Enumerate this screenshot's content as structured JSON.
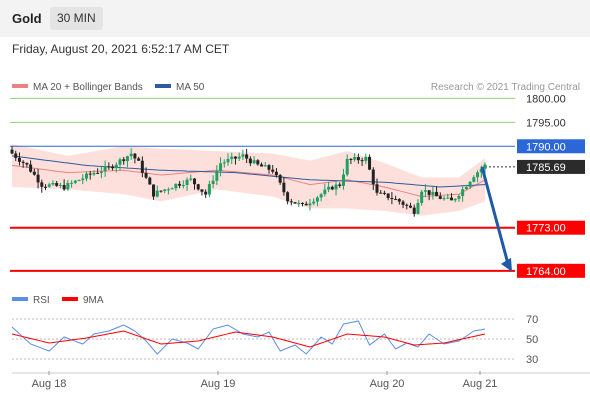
{
  "header": {
    "instrument": "Gold",
    "timeframe": "30 MIN",
    "datetime": "Friday, August 20, 2021 6:52:17 AM CET"
  },
  "colors": {
    "bull": "#1f9f60",
    "bear": "#222222",
    "band_fill": "#fde0dc",
    "ma20": "#f08080",
    "ma50": "#2e5aa0",
    "resistance": "#8fd16a",
    "pivot": "#2b67d6",
    "support": "#ff0000",
    "arrow": "#1f5aa6",
    "rsi": "#5b8ee6",
    "ma9": "#ff0000"
  },
  "chart_data": [
    {
      "type": "candlestick",
      "legend": [
        "MA 20 + Bollinger Bands",
        "MA 50"
      ],
      "credit": "Research © 2021 Trading Central",
      "x_labels": [
        "Aug 18",
        "Aug 19",
        "Aug 20",
        "Aug 21"
      ],
      "ylim": [
        1762.5,
        1803
      ],
      "levels": [
        {
          "label": "1800.00",
          "value": 1800.0,
          "kind": "resistance"
        },
        {
          "label": "1795.00",
          "value": 1795.0,
          "kind": "resistance"
        },
        {
          "label": "1790.00",
          "value": 1790.0,
          "kind": "pivot"
        },
        {
          "label": "1785.69",
          "value": 1785.69,
          "kind": "last"
        },
        {
          "label": "1773.00",
          "value": 1773.0,
          "kind": "support"
        },
        {
          "label": "1764.00",
          "value": 1764.0,
          "kind": "support"
        }
      ],
      "close_anchors": [
        [
          0,
          1788.5
        ],
        [
          4,
          1786
        ],
        [
          8,
          1782
        ],
        [
          14,
          1781.5
        ],
        [
          22,
          1784.5
        ],
        [
          26,
          1785.5
        ],
        [
          29,
          1787
        ],
        [
          32,
          1788.5
        ],
        [
          34,
          1786.5
        ],
        [
          38,
          1780
        ],
        [
          44,
          1782
        ],
        [
          48,
          1783
        ],
        [
          52,
          1780
        ],
        [
          56,
          1786.5
        ],
        [
          62,
          1788
        ],
        [
          66,
          1786
        ],
        [
          70,
          1785
        ],
        [
          74,
          1779
        ],
        [
          78,
          1777.5
        ],
        [
          82,
          1779.5
        ],
        [
          86,
          1781.5
        ],
        [
          88,
          1782
        ],
        [
          90,
          1787
        ],
        [
          95,
          1787.5
        ],
        [
          98,
          1780
        ],
        [
          101,
          1779.5
        ],
        [
          104,
          1778.5
        ],
        [
          108,
          1776.5
        ],
        [
          110,
          1781
        ],
        [
          114,
          1779.5
        ],
        [
          118,
          1778.5
        ],
        [
          121,
          1781
        ],
        [
          124,
          1784
        ],
        [
          127,
          1786
        ]
      ],
      "ma20_anchors": [
        [
          0,
          1786
        ],
        [
          15,
          1784.5
        ],
        [
          30,
          1785
        ],
        [
          40,
          1784
        ],
        [
          55,
          1785
        ],
        [
          70,
          1784
        ],
        [
          80,
          1782
        ],
        [
          90,
          1783
        ],
        [
          100,
          1781.5
        ],
        [
          110,
          1779.5
        ],
        [
          120,
          1780
        ],
        [
          127,
          1783
        ]
      ],
      "band_width_anchors": [
        [
          0,
          4.5
        ],
        [
          15,
          3.5
        ],
        [
          30,
          5
        ],
        [
          40,
          5.5
        ],
        [
          55,
          4
        ],
        [
          70,
          4.5
        ],
        [
          80,
          5
        ],
        [
          90,
          6
        ],
        [
          100,
          5
        ],
        [
          110,
          4
        ],
        [
          120,
          3.5
        ],
        [
          127,
          4.5
        ]
      ],
      "ma50_anchors": [
        [
          0,
          1788
        ],
        [
          20,
          1786
        ],
        [
          40,
          1785
        ],
        [
          60,
          1784.5
        ],
        [
          80,
          1783
        ],
        [
          100,
          1782.5
        ],
        [
          115,
          1781.5
        ],
        [
          127,
          1782
        ]
      ]
    },
    {
      "type": "line",
      "series": [
        {
          "name": "RSI"
        },
        {
          "name": "9MA"
        }
      ],
      "ylim": [
        25,
        75
      ],
      "ticks": [
        70,
        50,
        30
      ],
      "rsi_anchors": [
        [
          0,
          62
        ],
        [
          5,
          45
        ],
        [
          10,
          38
        ],
        [
          14,
          52
        ],
        [
          19,
          45
        ],
        [
          22,
          55
        ],
        [
          26,
          58
        ],
        [
          30,
          64
        ],
        [
          33,
          58
        ],
        [
          36,
          48
        ],
        [
          39,
          35
        ],
        [
          43,
          50
        ],
        [
          47,
          46
        ],
        [
          50,
          40
        ],
        [
          54,
          60
        ],
        [
          58,
          64
        ],
        [
          62,
          55
        ],
        [
          66,
          52
        ],
        [
          69,
          57
        ],
        [
          72,
          38
        ],
        [
          76,
          44
        ],
        [
          79,
          35
        ],
        [
          83,
          52
        ],
        [
          86,
          45
        ],
        [
          89,
          65
        ],
        [
          93,
          68
        ],
        [
          96,
          44
        ],
        [
          100,
          55
        ],
        [
          103,
          40
        ],
        [
          106,
          46
        ],
        [
          109,
          42
        ],
        [
          112,
          55
        ],
        [
          116,
          45
        ],
        [
          120,
          48
        ],
        [
          124,
          58
        ],
        [
          127,
          60
        ]
      ],
      "ma9_anchors": [
        [
          0,
          55
        ],
        [
          10,
          46
        ],
        [
          20,
          51
        ],
        [
          30,
          58
        ],
        [
          40,
          45
        ],
        [
          50,
          48
        ],
        [
          60,
          57
        ],
        [
          70,
          52
        ],
        [
          80,
          42
        ],
        [
          90,
          55
        ],
        [
          100,
          52
        ],
        [
          108,
          44
        ],
        [
          116,
          46
        ],
        [
          127,
          55
        ]
      ]
    }
  ]
}
